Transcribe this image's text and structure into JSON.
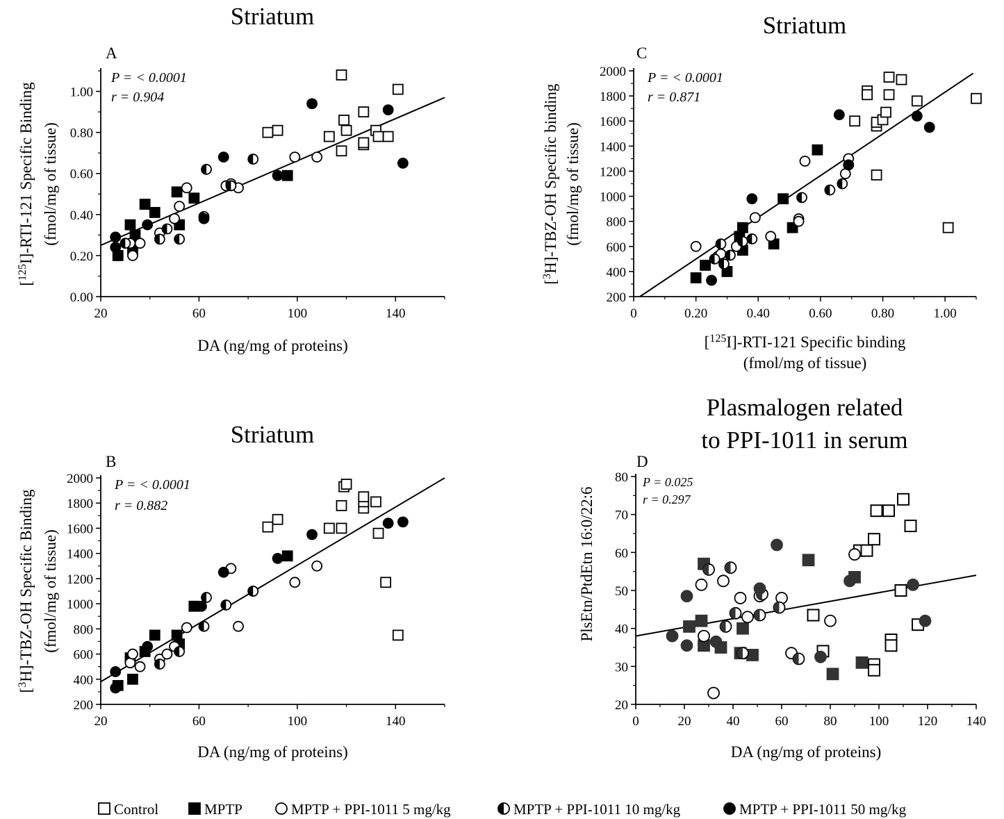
{
  "legend": [
    {
      "marker": "square-open",
      "label": "Control"
    },
    {
      "marker": "square-filled",
      "label": "MPTP"
    },
    {
      "marker": "circle-open",
      "label": "MPTP + PPI-1011 5 mg/kg"
    },
    {
      "marker": "circle-half",
      "label": "MPTP + PPI-1011 10 mg/kg"
    },
    {
      "marker": "circle-filled",
      "label": "MPTP + PPI-1011 50 mg/kg"
    }
  ],
  "colors": {
    "ink": "#000000",
    "filled_gray": "#333333",
    "background": "#ffffff"
  },
  "chart_data": [
    {
      "panel": "A",
      "type": "scatter",
      "title": "Striatum",
      "stats": {
        "p": "P = < 0.0001",
        "r": "r = 0.904"
      },
      "xlabel": "DA (ng/mg of proteins)",
      "ylabel_line1": "[125I]-RTI-121 Specific Binding",
      "ylabel_line2": "(fmol/mg of tissue)",
      "xlim": [
        20,
        160
      ],
      "ylim": [
        0,
        1.1
      ],
      "xticks": [
        "20",
        "60",
        "100",
        "140"
      ],
      "yticks": [
        "0.00",
        "0.20",
        "0.40",
        "0.60",
        "0.80",
        "1.00"
      ],
      "regression": [
        [
          20,
          0.25
        ],
        [
          160,
          0.97
        ]
      ],
      "series": [
        {
          "marker": "square-open",
          "points": [
            [
              88,
              0.8
            ],
            [
              92,
              0.81
            ],
            [
              113,
              0.78
            ],
            [
              118,
              1.08
            ],
            [
              119,
              0.86
            ],
            [
              118,
              0.71
            ],
            [
              120,
              0.81
            ],
            [
              127,
              0.9
            ],
            [
              127,
              0.74
            ],
            [
              127,
              0.75
            ],
            [
              132,
              0.81
            ],
            [
              133,
              0.78
            ],
            [
              137,
              0.78
            ],
            [
              141,
              1.01
            ]
          ]
        },
        {
          "marker": "square-filled",
          "points": [
            [
              27,
              0.2
            ],
            [
              32,
              0.35
            ],
            [
              33,
              0.23
            ],
            [
              34,
              0.3
            ],
            [
              38,
              0.45
            ],
            [
              42,
              0.41
            ],
            [
              51,
              0.51
            ],
            [
              52,
              0.35
            ],
            [
              58,
              0.48
            ],
            [
              96,
              0.59
            ]
          ]
        },
        {
          "marker": "circle-open",
          "points": [
            [
              32,
              0.26
            ],
            [
              33,
              0.2
            ],
            [
              36,
              0.26
            ],
            [
              44,
              0.31
            ],
            [
              50,
              0.38
            ],
            [
              52,
              0.44
            ],
            [
              55,
              0.53
            ],
            [
              71,
              0.54
            ],
            [
              73,
              0.55
            ],
            [
              76,
              0.53
            ],
            [
              99,
              0.68
            ],
            [
              108,
              0.68
            ]
          ]
        },
        {
          "marker": "circle-half",
          "points": [
            [
              30,
              0.26
            ],
            [
              44,
              0.28
            ],
            [
              47,
              0.33
            ],
            [
              52,
              0.28
            ],
            [
              62,
              0.39
            ],
            [
              63,
              0.62
            ],
            [
              73,
              0.54
            ],
            [
              82,
              0.67
            ]
          ]
        },
        {
          "marker": "circle-filled",
          "points": [
            [
              26,
              0.29
            ],
            [
              26,
              0.24
            ],
            [
              27,
              0.2
            ],
            [
              39,
              0.35
            ],
            [
              62,
              0.38
            ],
            [
              70,
              0.68
            ],
            [
              92,
              0.59
            ],
            [
              106,
              0.94
            ],
            [
              137,
              0.91
            ],
            [
              143,
              0.65
            ]
          ]
        }
      ]
    },
    {
      "panel": "B",
      "type": "scatter",
      "title": "Striatum",
      "stats": {
        "p": "P = < 0.0001",
        "r": "r = 0.882"
      },
      "xlabel": "DA (ng/mg of proteins)",
      "ylabel_line1": "[3H]-TBZ-OH Specific Binding",
      "ylabel_line2": "(fmol/mg of tissue)",
      "xlim": [
        20,
        160
      ],
      "ylim": [
        200,
        2000
      ],
      "xticks": [
        "20",
        "60",
        "100",
        "140"
      ],
      "yticks": [
        "200",
        "400",
        "600",
        "800",
        "1000",
        "1200",
        "1400",
        "1600",
        "1800",
        "2000"
      ],
      "regression": [
        [
          20,
          380
        ],
        [
          160,
          2000
        ]
      ],
      "series": [
        {
          "marker": "square-open",
          "points": [
            [
              88,
              1610
            ],
            [
              92,
              1670
            ],
            [
              113,
              1600
            ],
            [
              118,
              1600
            ],
            [
              118,
              1780
            ],
            [
              119,
              1930
            ],
            [
              120,
              1950
            ],
            [
              127,
              1760
            ],
            [
              127,
              1810
            ],
            [
              127,
              1850
            ],
            [
              132,
              1810
            ],
            [
              133,
              1560
            ],
            [
              136,
              1170
            ],
            [
              141,
              750
            ]
          ]
        },
        {
          "marker": "square-filled",
          "points": [
            [
              27,
              350
            ],
            [
              32,
              570
            ],
            [
              33,
              400
            ],
            [
              38,
              620
            ],
            [
              42,
              750
            ],
            [
              51,
              750
            ],
            [
              52,
              680
            ],
            [
              58,
              980
            ],
            [
              96,
              1380
            ]
          ]
        },
        {
          "marker": "circle-open",
          "points": [
            [
              32,
              530
            ],
            [
              33,
              600
            ],
            [
              36,
              500
            ],
            [
              44,
              560
            ],
            [
              47,
              600
            ],
            [
              50,
              660
            ],
            [
              55,
              810
            ],
            [
              73,
              1280
            ],
            [
              76,
              820
            ],
            [
              82,
              1100
            ],
            [
              99,
              1170
            ],
            [
              108,
              1300
            ]
          ]
        },
        {
          "marker": "circle-half",
          "points": [
            [
              44,
              520
            ],
            [
              52,
              620
            ],
            [
              62,
              820
            ],
            [
              63,
              1050
            ],
            [
              71,
              990
            ],
            [
              82,
              1100
            ]
          ]
        },
        {
          "marker": "circle-filled",
          "points": [
            [
              26,
              460
            ],
            [
              26,
              330
            ],
            [
              39,
              660
            ],
            [
              61,
              980
            ],
            [
              70,
              1250
            ],
            [
              92,
              1360
            ],
            [
              106,
              1550
            ],
            [
              137,
              1640
            ],
            [
              143,
              1650
            ]
          ]
        }
      ]
    },
    {
      "panel": "C",
      "type": "scatter",
      "title": "Striatum",
      "stats": {
        "p": "P = < 0.0001",
        "r": "r = 0.871"
      },
      "xlabel_line1": "[125I]-RTI-121 Specific binding",
      "xlabel_line2": "(fmol/mg of tissue)",
      "ylabel_line1": "[3H]-TBZ-OH Specific binding",
      "ylabel_line2": "(fmol/mg of tissue)",
      "xlim": [
        0,
        1.1
      ],
      "ylim": [
        200,
        2000
      ],
      "xticks": [
        "0",
        "0.20",
        "0.40",
        "0.60",
        "0.80",
        "1.00"
      ],
      "yticks": [
        "200",
        "400",
        "600",
        "800",
        "1000",
        "1200",
        "1400",
        "1600",
        "1800",
        "2000"
      ],
      "regression": [
        [
          0.02,
          200
        ],
        [
          1.09,
          1980
        ]
      ],
      "series": [
        {
          "marker": "square-open",
          "points": [
            [
              0.71,
              1600
            ],
            [
              0.75,
              1840
            ],
            [
              0.75,
              1810
            ],
            [
              0.78,
              1560
            ],
            [
              0.78,
              1590
            ],
            [
              0.78,
              1170
            ],
            [
              0.8,
              1610
            ],
            [
              0.81,
              1670
            ],
            [
              0.82,
              1810
            ],
            [
              0.82,
              1950
            ],
            [
              0.86,
              1930
            ],
            [
              0.91,
              1760
            ],
            [
              1.01,
              750
            ],
            [
              1.1,
              1780
            ]
          ]
        },
        {
          "marker": "square-filled",
          "points": [
            [
              0.2,
              350
            ],
            [
              0.23,
              450
            ],
            [
              0.3,
              400
            ],
            [
              0.34,
              680
            ],
            [
              0.35,
              570
            ],
            [
              0.35,
              750
            ],
            [
              0.45,
              620
            ],
            [
              0.48,
              980
            ],
            [
              0.51,
              750
            ],
            [
              0.59,
              1370
            ]
          ]
        },
        {
          "marker": "circle-open",
          "points": [
            [
              0.2,
              600
            ],
            [
              0.27,
              520
            ],
            [
              0.28,
              540
            ],
            [
              0.33,
              600
            ],
            [
              0.39,
              830
            ],
            [
              0.44,
              680
            ],
            [
              0.53,
              820
            ],
            [
              0.53,
              800
            ],
            [
              0.55,
              1280
            ],
            [
              0.68,
              1180
            ],
            [
              0.69,
              1300
            ]
          ]
        },
        {
          "marker": "circle-half",
          "points": [
            [
              0.26,
              500
            ],
            [
              0.28,
              620
            ],
            [
              0.29,
              460
            ],
            [
              0.31,
              530
            ],
            [
              0.35,
              640
            ],
            [
              0.38,
              660
            ],
            [
              0.54,
              990
            ],
            [
              0.63,
              1050
            ],
            [
              0.67,
              1100
            ],
            [
              0.69,
              1250
            ]
          ]
        },
        {
          "marker": "circle-filled",
          "points": [
            [
              0.25,
              330
            ],
            [
              0.38,
              980
            ],
            [
              0.66,
              1650
            ],
            [
              0.69,
              1250
            ],
            [
              0.91,
              1640
            ],
            [
              0.95,
              1550
            ]
          ]
        }
      ]
    },
    {
      "panel": "D",
      "type": "scatter",
      "title_line1": "Plasmalogen related",
      "title_line2": "to PPI-1011 in serum",
      "stats": {
        "p": "P = 0.025",
        "r": "r = 0.297"
      },
      "xlabel": "DA (ng/mg of proteins)",
      "ylabel": "PlsEtn/PtdEtn 16:0/22:6",
      "xlim": [
        0,
        140
      ],
      "ylim": [
        20,
        80
      ],
      "xticks": [
        "0",
        "20",
        "40",
        "60",
        "80",
        "100",
        "120",
        "140"
      ],
      "yticks": [
        "20",
        "30",
        "40",
        "50",
        "60",
        "70",
        "80"
      ],
      "regression": [
        [
          0,
          38
        ],
        [
          140,
          54
        ]
      ],
      "series": [
        {
          "marker": "square-open",
          "points": [
            [
              73,
              43.5
            ],
            [
              77,
              34
            ],
            [
              92,
              60.5
            ],
            [
              95,
              60.5
            ],
            [
              98,
              63.5
            ],
            [
              99,
              71
            ],
            [
              98,
              30.5
            ],
            [
              98,
              29
            ],
            [
              104,
              71
            ],
            [
              105,
              37
            ],
            [
              105,
              35.5
            ],
            [
              109,
              50
            ],
            [
              110,
              74
            ],
            [
              113,
              67
            ],
            [
              116,
              41
            ]
          ]
        },
        {
          "marker": "square-filled",
          "points": [
            [
              22,
              40.5
            ],
            [
              27,
              42
            ],
            [
              28,
              57
            ],
            [
              28,
              35.5
            ],
            [
              35,
              35
            ],
            [
              43,
              33.5
            ],
            [
              44,
              40
            ],
            [
              48,
              33
            ],
            [
              71,
              58
            ],
            [
              81,
              28
            ],
            [
              90,
              53.5
            ],
            [
              93,
              31
            ]
          ]
        },
        {
          "marker": "circle-open",
          "points": [
            [
              27,
              51.5
            ],
            [
              28,
              38
            ],
            [
              32,
              23
            ],
            [
              36,
              52.5
            ],
            [
              43,
              48
            ],
            [
              46,
              43
            ],
            [
              51,
              48.5
            ],
            [
              60,
              48
            ],
            [
              64,
              33.5
            ],
            [
              80,
              42
            ],
            [
              90,
              59.5
            ]
          ]
        },
        {
          "marker": "circle-half",
          "points": [
            [
              30,
              55.5
            ],
            [
              39,
              56
            ],
            [
              37,
              40.5
            ],
            [
              41,
              44
            ],
            [
              44,
              33.5
            ],
            [
              51,
              43.5
            ],
            [
              52,
              49
            ],
            [
              59,
              45.5
            ],
            [
              67,
              32
            ]
          ]
        },
        {
          "marker": "circle-filled",
          "points": [
            [
              15,
              38
            ],
            [
              21,
              48.5
            ],
            [
              21,
              35.5
            ],
            [
              33,
              36.5
            ],
            [
              51,
              50.5
            ],
            [
              58,
              62
            ],
            [
              76,
              32.5
            ],
            [
              88,
              52.5
            ],
            [
              114,
              51.5
            ],
            [
              119,
              42
            ]
          ]
        }
      ]
    }
  ]
}
